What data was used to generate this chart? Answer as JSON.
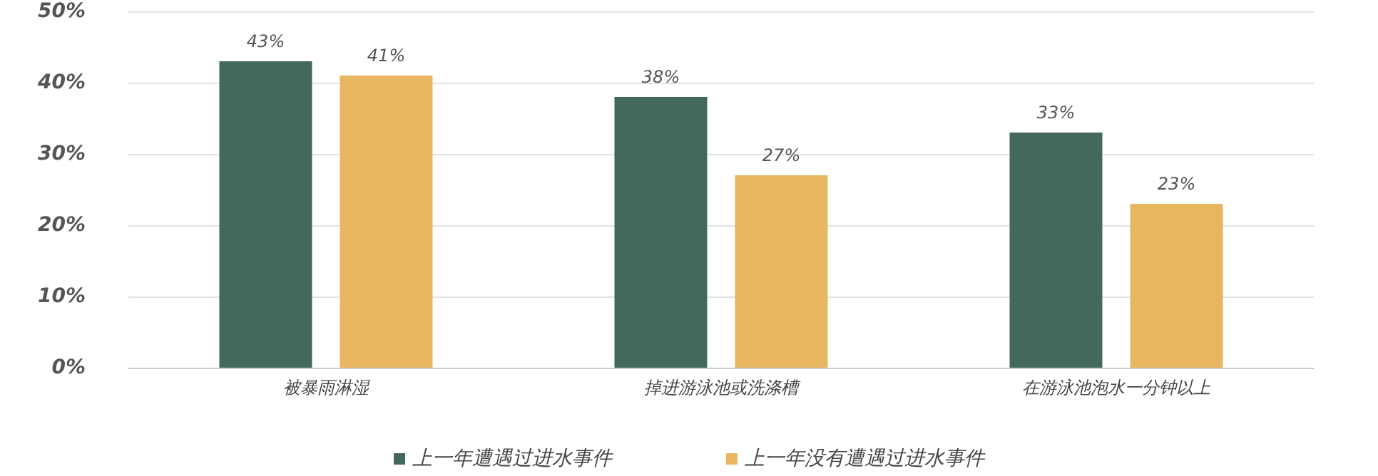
{
  "chart_data": {
    "type": "bar",
    "categories": [
      "被暴雨淋湿",
      "掉进游泳池或洗涤槽",
      "在游泳池泡水一分钟以上"
    ],
    "series": [
      {
        "name": "上一年遭遇过进水事件",
        "color": "#42695a",
        "values": [
          43,
          38,
          33
        ],
        "value_labels": [
          "43%",
          "38%",
          "33%"
        ]
      },
      {
        "name": "上一年没有遭遇过进水事件",
        "color": "#e8b660",
        "values": [
          41,
          27,
          23
        ],
        "value_labels": [
          "41%",
          "27%",
          "23%"
        ]
      }
    ],
    "ylim": [
      0,
      50
    ],
    "yticks": [
      {
        "value": 0,
        "label": "0%"
      },
      {
        "value": 10,
        "label": "10%"
      },
      {
        "value": 20,
        "label": "20%"
      },
      {
        "value": 30,
        "label": "30%"
      },
      {
        "value": 40,
        "label": "40%"
      },
      {
        "value": 50,
        "label": "50%"
      }
    ],
    "grid": "y",
    "legend": "bottom"
  }
}
